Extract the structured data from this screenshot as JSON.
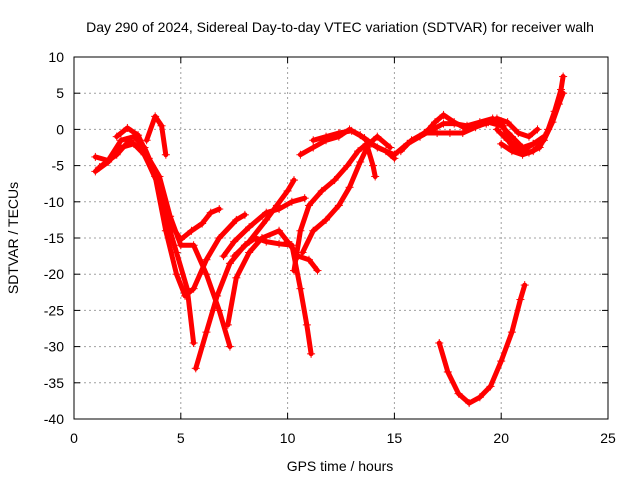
{
  "chart_data": {
    "type": "scatter",
    "title": "Day 290 of 2024, Sidereal Day-to-day VTEC variation (SDTVAR) for receiver walh",
    "xlabel": "GPS time / hours",
    "ylabel": "SDTVAR / TECUs",
    "xlim": [
      0,
      25
    ],
    "ylim": [
      -40,
      10
    ],
    "xticks": [
      0,
      5,
      10,
      15,
      20,
      25
    ],
    "yticks": [
      -40,
      -35,
      -30,
      -25,
      -20,
      -15,
      -10,
      -5,
      0,
      5,
      10
    ],
    "grid": true,
    "legend": "none",
    "marker": "plus",
    "color": "#ff0000",
    "series": [
      {
        "points": [
          [
            1.0,
            -5.8
          ],
          [
            1.6,
            -4.5
          ],
          [
            2.2,
            -2.5
          ],
          [
            2.8,
            -2.0
          ],
          [
            3.3,
            -3.5
          ],
          [
            4.0,
            -8.0
          ],
          [
            4.5,
            -13.0
          ],
          [
            5.0,
            -15.2
          ],
          [
            5.5,
            -14.0
          ],
          [
            6.0,
            -13.0
          ],
          [
            6.4,
            -11.5
          ],
          [
            6.8,
            -11.0
          ]
        ]
      },
      {
        "points": [
          [
            1.2,
            -5.2
          ],
          [
            2.0,
            -3.5
          ],
          [
            2.6,
            -1.5
          ],
          [
            3.2,
            -3.0
          ],
          [
            3.8,
            -6.5
          ],
          [
            4.3,
            -14.0
          ],
          [
            4.8,
            -20.0
          ],
          [
            5.2,
            -23.0
          ],
          [
            5.6,
            -22.0
          ],
          [
            6.2,
            -18.0
          ],
          [
            6.8,
            -15.0
          ],
          [
            7.6,
            -12.5
          ],
          [
            8.0,
            -11.8
          ]
        ]
      },
      {
        "points": [
          [
            1.0,
            -3.8
          ],
          [
            1.6,
            -4.3
          ],
          [
            2.2,
            -1.5
          ],
          [
            2.8,
            -1.0
          ],
          [
            3.3,
            -2.5
          ],
          [
            3.8,
            -6.0
          ],
          [
            4.3,
            -12.0
          ],
          [
            4.8,
            -17.0
          ],
          [
            5.3,
            -22.0
          ],
          [
            5.6,
            -29.5
          ]
        ]
      },
      {
        "points": [
          [
            2.0,
            -1.0
          ],
          [
            2.5,
            0.2
          ],
          [
            3.0,
            -0.8
          ],
          [
            3.5,
            -4.0
          ],
          [
            4.0,
            -6.5
          ],
          [
            4.5,
            -12.0
          ],
          [
            5.0,
            -16.0
          ],
          [
            5.6,
            -16.0
          ],
          [
            6.2,
            -20.0
          ],
          [
            6.8,
            -25.0
          ],
          [
            7.3,
            -30.0
          ]
        ]
      },
      {
        "points": [
          [
            3.4,
            -1.5
          ],
          [
            3.8,
            1.8
          ],
          [
            4.1,
            0.5
          ],
          [
            4.3,
            -3.5
          ]
        ]
      },
      {
        "points": [
          [
            5.7,
            -33.0
          ],
          [
            6.2,
            -28.0
          ],
          [
            6.7,
            -23.0
          ],
          [
            7.3,
            -18.5
          ],
          [
            8.0,
            -16.0
          ],
          [
            8.5,
            -15.0
          ],
          [
            9.0,
            -15.5
          ],
          [
            9.6,
            -15.8
          ],
          [
            10.2,
            -16.0
          ],
          [
            10.6,
            -22.0
          ],
          [
            10.9,
            -27.0
          ],
          [
            11.1,
            -31.0
          ]
        ]
      },
      {
        "points": [
          [
            7.2,
            -27.0
          ],
          [
            7.6,
            -20.5
          ],
          [
            8.2,
            -17.0
          ],
          [
            8.8,
            -15.0
          ],
          [
            9.6,
            -14.0
          ],
          [
            10.0,
            -15.5
          ],
          [
            10.5,
            -17.5
          ],
          [
            11.0,
            -18.0
          ],
          [
            11.4,
            -19.5
          ]
        ]
      },
      {
        "points": [
          [
            7.0,
            -17.5
          ],
          [
            7.5,
            -15.5
          ],
          [
            8.2,
            -13.5
          ],
          [
            9.0,
            -11.5
          ],
          [
            9.6,
            -11.0
          ],
          [
            10.2,
            -10.0
          ],
          [
            10.8,
            -9.5
          ]
        ]
      },
      {
        "points": [
          [
            7.5,
            -17.5
          ],
          [
            8.2,
            -15.5
          ],
          [
            9.0,
            -12.5
          ],
          [
            9.5,
            -10.5
          ],
          [
            10.0,
            -8.5
          ],
          [
            10.3,
            -7.0
          ]
        ]
      },
      {
        "points": [
          [
            10.3,
            -19.5
          ],
          [
            10.6,
            -14.0
          ],
          [
            11.0,
            -10.5
          ],
          [
            11.6,
            -8.5
          ],
          [
            12.2,
            -7.0
          ],
          [
            12.8,
            -5.0
          ],
          [
            13.3,
            -3.0
          ],
          [
            13.7,
            -2.0
          ],
          [
            14.0,
            -5.0
          ],
          [
            14.1,
            -6.5
          ]
        ]
      },
      {
        "points": [
          [
            10.7,
            -17.0
          ],
          [
            11.2,
            -14.0
          ],
          [
            11.8,
            -12.5
          ],
          [
            12.4,
            -10.5
          ],
          [
            12.9,
            -8.0
          ],
          [
            13.4,
            -4.5
          ],
          [
            13.8,
            -2.0
          ],
          [
            14.2,
            -1.0
          ],
          [
            14.8,
            -2.5
          ]
        ]
      },
      {
        "points": [
          [
            10.6,
            -3.5
          ],
          [
            11.2,
            -2.5
          ],
          [
            11.8,
            -1.5
          ],
          [
            12.4,
            -1.0
          ],
          [
            12.9,
            0.0
          ],
          [
            13.4,
            -0.8
          ],
          [
            13.9,
            -2.0
          ],
          [
            14.6,
            -3.0
          ],
          [
            15.0,
            -4.0
          ]
        ]
      },
      {
        "points": [
          [
            11.2,
            -1.5
          ],
          [
            11.8,
            -1.0
          ],
          [
            12.4,
            -0.5
          ],
          [
            13.0,
            -0.2
          ],
          [
            13.6,
            -1.2
          ],
          [
            14.2,
            -2.5
          ],
          [
            15.0,
            -3.5
          ]
        ]
      },
      {
        "points": [
          [
            15.0,
            -3.5
          ],
          [
            15.6,
            -2.0
          ],
          [
            16.2,
            -1.0
          ],
          [
            16.6,
            0.0
          ],
          [
            16.9,
            1.0
          ],
          [
            17.3,
            2.0
          ],
          [
            17.8,
            1.0
          ],
          [
            18.3,
            0.2
          ],
          [
            18.8,
            0.5
          ],
          [
            19.3,
            0.8
          ],
          [
            19.8,
            1.5
          ],
          [
            20.3,
            1.0
          ],
          [
            20.8,
            -0.5
          ],
          [
            21.3,
            -1.0
          ],
          [
            21.7,
            0.0
          ]
        ]
      },
      {
        "points": [
          [
            15.3,
            -3.0
          ],
          [
            15.8,
            -1.5
          ],
          [
            16.4,
            -0.5
          ],
          [
            17.0,
            -0.5
          ],
          [
            17.6,
            -0.5
          ],
          [
            18.2,
            -0.5
          ],
          [
            18.8,
            0.3
          ],
          [
            19.4,
            1.0
          ],
          [
            20.0,
            0.5
          ],
          [
            20.5,
            -1.0
          ],
          [
            21.0,
            -2.5
          ],
          [
            21.5,
            -2.0
          ]
        ]
      },
      {
        "points": [
          [
            16.2,
            -1.0
          ],
          [
            16.8,
            0.0
          ],
          [
            17.3,
            0.8
          ],
          [
            17.8,
            0.8
          ],
          [
            18.4,
            0.5
          ],
          [
            19.0,
            1.0
          ],
          [
            19.6,
            1.5
          ],
          [
            20.1,
            0.5
          ],
          [
            20.5,
            -2.5
          ],
          [
            21.0,
            -3.0
          ],
          [
            21.5,
            -2.0
          ],
          [
            22.0,
            -1.0
          ]
        ]
      },
      {
        "points": [
          [
            19.8,
            0.0
          ],
          [
            20.3,
            -1.5
          ],
          [
            20.8,
            -2.5
          ],
          [
            21.3,
            -3.2
          ],
          [
            21.8,
            -2.5
          ],
          [
            22.2,
            0.0
          ],
          [
            22.5,
            2.5
          ],
          [
            22.8,
            5.5
          ],
          [
            22.9,
            7.3
          ]
        ]
      },
      {
        "points": [
          [
            20.0,
            -2.0
          ],
          [
            20.5,
            -3.0
          ],
          [
            21.0,
            -3.5
          ],
          [
            21.5,
            -3.0
          ],
          [
            22.0,
            -1.5
          ],
          [
            22.4,
            1.0
          ],
          [
            22.7,
            3.5
          ],
          [
            22.9,
            5.0
          ]
        ]
      },
      {
        "points": [
          [
            17.1,
            -29.5
          ],
          [
            17.5,
            -33.5
          ],
          [
            18.0,
            -36.5
          ],
          [
            18.5,
            -37.8
          ],
          [
            19.0,
            -37.0
          ],
          [
            19.5,
            -35.5
          ],
          [
            20.0,
            -32.0
          ],
          [
            20.5,
            -28.0
          ],
          [
            20.9,
            -23.5
          ],
          [
            21.1,
            -21.5
          ]
        ]
      }
    ]
  }
}
